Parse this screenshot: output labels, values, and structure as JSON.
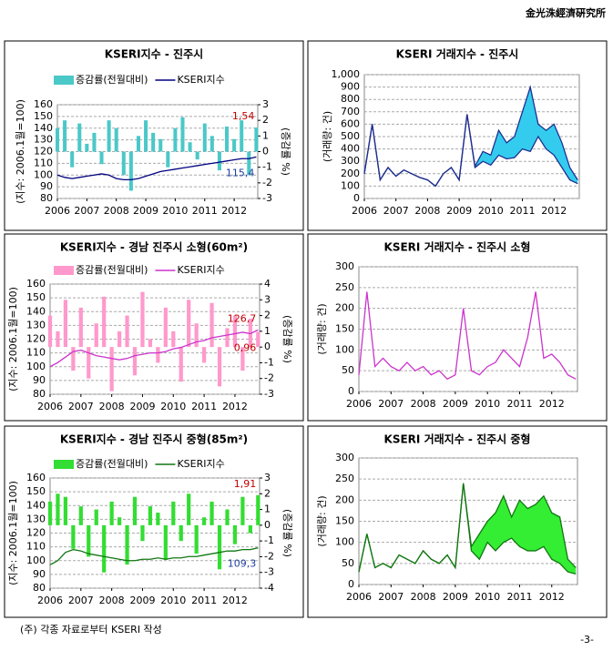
{
  "header": "金光洙經濟硏究所",
  "footer": {
    "note": "(주) 각종 자료로부터 KSERI 작성",
    "page": "-3-"
  },
  "chart_data": [
    {
      "type": "combo",
      "title": "KSERI지수 - 진주시",
      "y_label": "(지수: 2006.1월=100)",
      "y2_label": "(증감률 %)",
      "x": [
        2006,
        2006.25,
        2006.5,
        2006.75,
        2007,
        2007.25,
        2007.5,
        2007.75,
        2008,
        2008.25,
        2008.5,
        2008.75,
        2009,
        2009.25,
        2009.5,
        2009.75,
        2010,
        2010.25,
        2010.5,
        2010.75,
        2011,
        2011.25,
        2011.5,
        2011.75,
        2012,
        2012.25,
        2012.5,
        2012.75
      ],
      "xlim": [
        2006,
        2012.8
      ],
      "xticks": [
        2006,
        2007,
        2008,
        2009,
        2010,
        2011,
        2012
      ],
      "ylim": [
        80,
        160
      ],
      "yticks": [
        80,
        90,
        100,
        110,
        120,
        130,
        140,
        150,
        160
      ],
      "y2lim": [
        -3,
        3
      ],
      "y2ticks": [
        -3,
        -2,
        -1,
        0,
        1,
        2,
        3
      ],
      "grid": true,
      "series": [
        {
          "name": "증감률(전월대비)",
          "type": "bar",
          "axis": "y2",
          "color": "#4bc8c8",
          "values": [
            1.5,
            2.0,
            -1.0,
            1.8,
            0.5,
            1.2,
            -0.8,
            2.0,
            1.5,
            -1.5,
            -2.5,
            1.0,
            2.0,
            1.2,
            0.8,
            -1.0,
            1.5,
            2.2,
            0.6,
            -0.5,
            1.8,
            1.0,
            -1.2,
            1.6,
            0.8,
            2.0,
            -1.5,
            1.54
          ],
          "value_labels": [
            null,
            null,
            null,
            null,
            null,
            null,
            null,
            null,
            null,
            null,
            null,
            null,
            null,
            null,
            null,
            null,
            null,
            null,
            null,
            null,
            null,
            null,
            null,
            null,
            null,
            null,
            null,
            "1,54"
          ],
          "label_color": "#c00000",
          "label_position": "above"
        },
        {
          "name": "KSERI지수",
          "type": "line",
          "color": "#000080",
          "values": [
            100,
            98,
            97,
            98,
            99,
            100,
            101,
            100,
            97,
            96,
            96,
            97,
            99,
            101,
            103,
            104,
            105,
            106,
            107,
            108,
            109,
            110,
            111,
            112,
            113,
            114,
            114,
            115.4
          ],
          "value_labels": [
            null,
            null,
            null,
            null,
            null,
            null,
            null,
            null,
            null,
            null,
            null,
            null,
            null,
            null,
            null,
            null,
            null,
            null,
            null,
            null,
            null,
            null,
            null,
            null,
            null,
            null,
            null,
            "115,4"
          ],
          "label_color": "#1f3f9f",
          "label_position": "below"
        }
      ]
    },
    {
      "type": "line",
      "title": "KSERI 거래지수 - 진주시",
      "y_label": "(거래량: 건)",
      "x": [
        2006,
        2006.25,
        2006.5,
        2006.75,
        2007,
        2007.25,
        2007.5,
        2007.75,
        2008,
        2008.25,
        2008.5,
        2008.75,
        2009,
        2009.25,
        2009.5,
        2009.75,
        2010,
        2010.25,
        2010.5,
        2010.75,
        2011,
        2011.25,
        2011.5,
        2011.75,
        2012,
        2012.25,
        2012.5,
        2012.75
      ],
      "xlim": [
        2006,
        2012.8
      ],
      "xticks": [
        2006,
        2007,
        2008,
        2009,
        2010,
        2011,
        2012
      ],
      "ylim": [
        0,
        1000
      ],
      "yticks": [
        0,
        100,
        200,
        300,
        400,
        500,
        600,
        700,
        800,
        900,
        {
          "value": 1000,
          "label": "1,000"
        }
      ],
      "grid": true,
      "fill": "#33ccee",
      "series": [
        {
          "color": "#1f2f8f",
          "values": [
            200,
            600,
            150,
            250,
            180,
            230,
            200,
            170,
            150,
            100,
            200,
            250,
            150,
            680,
            250,
            300,
            270,
            350,
            320,
            330,
            400,
            380,
            500,
            400,
            350,
            250,
            150,
            120
          ]
        },
        {
          "color": "#1f2f8f",
          "values": [
            200,
            600,
            150,
            250,
            180,
            230,
            200,
            170,
            150,
            100,
            200,
            250,
            150,
            680,
            260,
            380,
            350,
            550,
            450,
            500,
            700,
            900,
            600,
            550,
            600,
            450,
            250,
            150
          ]
        }
      ]
    },
    {
      "type": "combo",
      "title": "KSERI지수 - 경남 진주시 소형(60m²)",
      "y_label": "(지수: 2006.1월=100)",
      "y2_label": "(증감률 %)",
      "x": [
        2006,
        2006.25,
        2006.5,
        2006.75,
        2007,
        2007.25,
        2007.5,
        2007.75,
        2008,
        2008.25,
        2008.5,
        2008.75,
        2009,
        2009.25,
        2009.5,
        2009.75,
        2010,
        2010.25,
        2010.5,
        2010.75,
        2011,
        2011.25,
        2011.5,
        2011.75,
        2012,
        2012.25,
        2012.5,
        2012.75
      ],
      "xlim": [
        2006,
        2012.8
      ],
      "xticks": [
        2006,
        2007,
        2008,
        2009,
        2010,
        2011,
        2012
      ],
      "ylim": [
        80,
        160
      ],
      "yticks": [
        80,
        90,
        100,
        110,
        120,
        130,
        140,
        150,
        160
      ],
      "y2lim": [
        -3,
        4
      ],
      "y2ticks": [
        -3,
        -2,
        -1,
        0,
        1,
        2,
        3,
        4
      ],
      "grid": true,
      "series": [
        {
          "name": "증감률(전월대비)",
          "type": "bar",
          "axis": "y2",
          "color": "#ff99cc",
          "values": [
            2.0,
            1.0,
            3.0,
            -1.5,
            2.5,
            -2.0,
            1.5,
            3.2,
            -2.8,
            1.0,
            2.0,
            -1.8,
            3.5,
            0.5,
            -1.0,
            2.5,
            1.0,
            -2.2,
            3.0,
            1.5,
            -1.0,
            2.8,
            -2.5,
            1.2,
            2.0,
            -1.5,
            1.8,
            0.96
          ],
          "value_labels": [
            null,
            null,
            null,
            null,
            null,
            null,
            null,
            null,
            null,
            null,
            null,
            null,
            null,
            null,
            null,
            null,
            null,
            null,
            null,
            null,
            null,
            null,
            null,
            null,
            null,
            null,
            null,
            "0,96"
          ],
          "label_color": "#c00000",
          "label_position": "below"
        },
        {
          "name": "KSERI지수",
          "type": "line",
          "color": "#cc33cc",
          "values": [
            100,
            103,
            107,
            111,
            112,
            110,
            108,
            107,
            106,
            105,
            106,
            108,
            109,
            110,
            110,
            111,
            113,
            114,
            116,
            118,
            119,
            121,
            122,
            123,
            124,
            125,
            124,
            126.7
          ],
          "value_labels": [
            null,
            null,
            null,
            null,
            null,
            null,
            null,
            null,
            null,
            null,
            null,
            null,
            null,
            null,
            null,
            null,
            null,
            null,
            null,
            null,
            null,
            null,
            null,
            null,
            null,
            null,
            null,
            "126,7"
          ],
          "label_color": "#c00000",
          "label_position": "above"
        }
      ]
    },
    {
      "type": "line",
      "title": "KSERI 거래지수 - 진주시 소형",
      "y_label": "(거래량: 건)",
      "x": [
        2006,
        2006.25,
        2006.5,
        2006.75,
        2007,
        2007.25,
        2007.5,
        2007.75,
        2008,
        2008.25,
        2008.5,
        2008.75,
        2009,
        2009.25,
        2009.5,
        2009.75,
        2010,
        2010.25,
        2010.5,
        2010.75,
        2011,
        2011.25,
        2011.5,
        2011.75,
        2012,
        2012.25,
        2012.5,
        2012.75
      ],
      "xlim": [
        2006,
        2012.8
      ],
      "xticks": [
        2006,
        2007,
        2008,
        2009,
        2010,
        2011,
        2012
      ],
      "ylim": [
        0,
        300
      ],
      "yticks": [
        0,
        50,
        100,
        150,
        200,
        250,
        300
      ],
      "grid": true,
      "series": [
        {
          "color": "#cc33cc",
          "values": [
            40,
            240,
            60,
            80,
            60,
            50,
            70,
            50,
            60,
            40,
            50,
            30,
            40,
            200,
            50,
            40,
            60,
            70,
            100,
            80,
            60,
            130,
            240,
            80,
            90,
            70,
            40,
            30
          ]
        }
      ]
    },
    {
      "type": "combo",
      "title": "KSERI지수 - 경남 진주시 중형(85m²)",
      "y_label": "(지수: 2006.1월=100)",
      "y2_label": "(증감률 %)",
      "x": [
        2006,
        2006.25,
        2006.5,
        2006.75,
        2007,
        2007.25,
        2007.5,
        2007.75,
        2008,
        2008.25,
        2008.5,
        2008.75,
        2009,
        2009.25,
        2009.5,
        2009.75,
        2010,
        2010.25,
        2010.5,
        2010.75,
        2011,
        2011.25,
        2011.5,
        2011.75,
        2012,
        2012.25,
        2012.5,
        2012.75
      ],
      "xlim": [
        2006,
        2012.8
      ],
      "xticks": [
        2006,
        2007,
        2008,
        2009,
        2010,
        2011,
        2012
      ],
      "ylim": [
        80,
        160
      ],
      "yticks": [
        80,
        90,
        100,
        110,
        120,
        130,
        140,
        150,
        160
      ],
      "y2lim": [
        -4,
        3
      ],
      "y2ticks": [
        -4,
        -3,
        -2,
        -1,
        0,
        1,
        2,
        3
      ],
      "grid": true,
      "series": [
        {
          "name": "증감률(전월대비)",
          "type": "bar",
          "axis": "y2",
          "color": "#33dd33",
          "values": [
            1.5,
            2.0,
            1.8,
            -1.5,
            1.2,
            -2.0,
            1.0,
            -3.0,
            1.5,
            0.5,
            -2.5,
            1.8,
            -1.0,
            1.2,
            0.8,
            -2.2,
            1.5,
            -1.0,
            2.0,
            -1.8,
            0.5,
            1.5,
            -2.8,
            1.0,
            -1.2,
            1.8,
            -0.5,
            1.91
          ],
          "value_labels": [
            null,
            null,
            null,
            null,
            null,
            null,
            null,
            null,
            null,
            null,
            null,
            null,
            null,
            null,
            null,
            null,
            null,
            null,
            null,
            null,
            null,
            null,
            null,
            null,
            null,
            null,
            null,
            "1,91"
          ],
          "label_color": "#c00000",
          "label_position": "above"
        },
        {
          "name": "KSERI지수",
          "type": "line",
          "color": "#117711",
          "values": [
            97,
            100,
            106,
            108,
            107,
            105,
            104,
            103,
            102,
            101,
            100,
            100,
            101,
            101,
            102,
            101,
            102,
            102,
            103,
            103,
            104,
            105,
            106,
            107,
            107,
            108,
            108,
            109.3
          ],
          "value_labels": [
            null,
            null,
            null,
            null,
            null,
            null,
            null,
            null,
            null,
            null,
            null,
            null,
            null,
            null,
            null,
            null,
            null,
            null,
            null,
            null,
            null,
            null,
            null,
            null,
            null,
            null,
            null,
            "109,3"
          ],
          "label_color": "#1f3f9f",
          "label_position": "below"
        }
      ]
    },
    {
      "type": "line",
      "title": "KSERI 거래지수 - 진주시 중형",
      "y_label": "(거래량: 건)",
      "x": [
        2006,
        2006.25,
        2006.5,
        2006.75,
        2007,
        2007.25,
        2007.5,
        2007.75,
        2008,
        2008.25,
        2008.5,
        2008.75,
        2009,
        2009.25,
        2009.5,
        2009.75,
        2010,
        2010.25,
        2010.5,
        2010.75,
        2011,
        2011.25,
        2011.5,
        2011.75,
        2012,
        2012.25,
        2012.5,
        2012.75
      ],
      "xlim": [
        2006,
        2012.8
      ],
      "xticks": [
        2006,
        2007,
        2008,
        2009,
        2010,
        2011,
        2012
      ],
      "ylim": [
        0,
        300
      ],
      "yticks": [
        0,
        50,
        100,
        150,
        200,
        250,
        300
      ],
      "grid": true,
      "fill": "#33ee33",
      "series": [
        {
          "color": "#117711",
          "values": [
            30,
            120,
            40,
            50,
            40,
            70,
            60,
            50,
            80,
            60,
            50,
            70,
            40,
            240,
            80,
            60,
            100,
            80,
            100,
            110,
            90,
            80,
            80,
            90,
            60,
            50,
            30,
            25
          ]
        },
        {
          "color": "#117711",
          "values": [
            30,
            120,
            40,
            50,
            40,
            70,
            60,
            50,
            80,
            60,
            50,
            70,
            40,
            240,
            90,
            120,
            150,
            170,
            210,
            160,
            200,
            180,
            190,
            210,
            170,
            160,
            60,
            40
          ]
        }
      ]
    }
  ]
}
